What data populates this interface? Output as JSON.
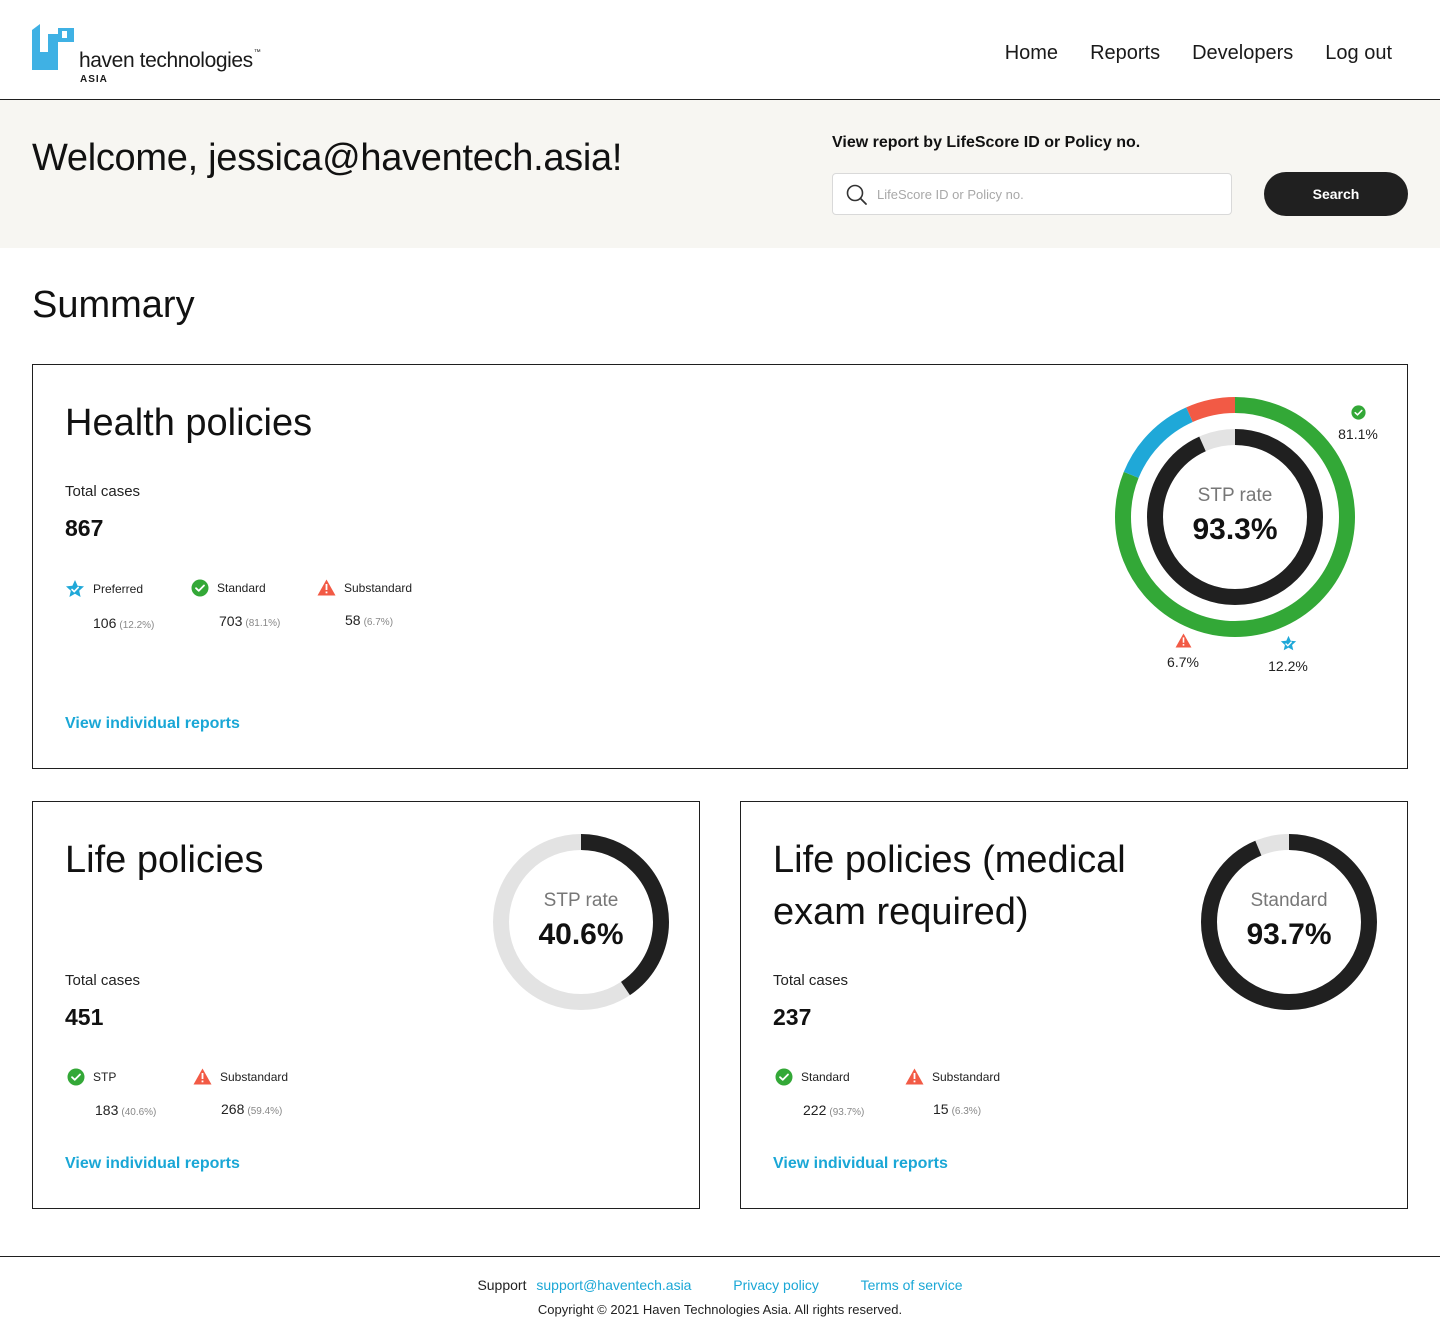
{
  "brand": {
    "name": "haven technologies",
    "tm": "™",
    "sub": "ASIA",
    "colors": {
      "primary": "#3fb1e4",
      "dark": "#202020"
    }
  },
  "nav": {
    "items": [
      {
        "label": "Home"
      },
      {
        "label": "Reports"
      },
      {
        "label": "Developers"
      },
      {
        "label": "Log out"
      }
    ]
  },
  "welcome": {
    "title": "Welcome, jessica@haventech.asia!"
  },
  "search": {
    "label": "View report by LifeScore ID or Policy no.",
    "placeholder": "LifeScore ID or Policy no.",
    "button": "Search"
  },
  "summary": {
    "title": "Summary"
  },
  "health": {
    "title": "Health policies",
    "total_label": "Total cases",
    "total": "867",
    "stats": [
      {
        "label": "Preferred",
        "count": "106",
        "pct": "(12.2%)",
        "icon": "star-badge-icon"
      },
      {
        "label": "Standard",
        "count": "703",
        "pct": "(81.1%)",
        "icon": "check-circle-icon"
      },
      {
        "label": "Substandard",
        "count": "58",
        "pct": "(6.7%)",
        "icon": "warning-triangle-icon"
      }
    ],
    "link": "View individual reports",
    "donut": {
      "label": "STP rate",
      "value": "93.3%",
      "stp_fraction": 0.933
    },
    "ring": {
      "segments": [
        {
          "name": "Standard",
          "fraction": 0.811,
          "color": "#33a837"
        },
        {
          "name": "Preferred",
          "fraction": 0.122,
          "color": "#1fa8d8"
        },
        {
          "name": "Substandard",
          "fraction": 0.067,
          "color": "#f25a45"
        }
      ],
      "labels": {
        "standard": "81.1%",
        "substandard": "6.7%",
        "preferred": "12.2%"
      }
    }
  },
  "life": {
    "title": "Life policies",
    "total_label": "Total cases",
    "total": "451",
    "stats": [
      {
        "label": "STP",
        "count": "183",
        "pct": "(40.6%)",
        "icon": "check-circle-icon"
      },
      {
        "label": "Substandard",
        "count": "268",
        "pct": "(59.4%)",
        "icon": "warning-triangle-icon"
      }
    ],
    "link": "View individual reports",
    "donut": {
      "label": "STP rate",
      "value": "40.6%",
      "fraction": 0.406
    }
  },
  "life_medical": {
    "title_line1": "Life policies (medical",
    "title_line2": "exam required)",
    "total_label": "Total cases",
    "total": "237",
    "stats": [
      {
        "label": "Standard",
        "count": "222",
        "pct": "(93.7%)",
        "icon": "check-circle-icon"
      },
      {
        "label": "Substandard",
        "count": "15",
        "pct": "(6.3%)",
        "icon": "warning-triangle-icon"
      }
    ],
    "link": "View individual reports",
    "donut": {
      "label": "Standard",
      "value": "93.7%",
      "fraction": 0.937
    }
  },
  "footer": {
    "support_label": "Support",
    "support_email": "support@haventech.asia",
    "privacy": "Privacy policy",
    "terms": "Terms of service",
    "copyright": "Copyright © 2021 Haven Technologies Asia. All rights reserved."
  }
}
